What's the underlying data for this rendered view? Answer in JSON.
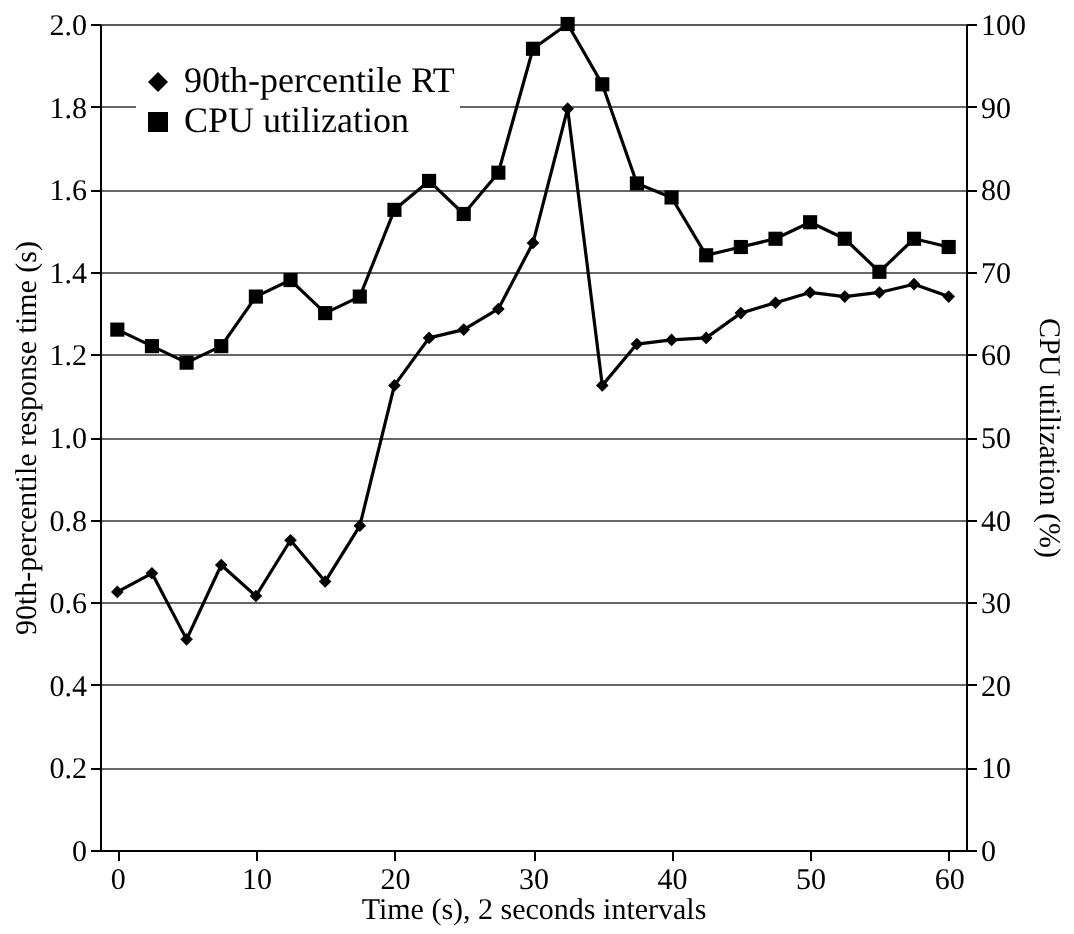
{
  "chart_data": {
    "type": "line",
    "xlabel": "Time (s), 2 seconds intervals",
    "ylabel": "90th-percentile response time (s)",
    "y2label": "CPU utilization (%)",
    "x": [
      0,
      2.5,
      5,
      7.5,
      10,
      12.5,
      15,
      17.5,
      20,
      22.5,
      25,
      27.5,
      30,
      32.5,
      35,
      37.5,
      40,
      42.5,
      45,
      47.5,
      50,
      52.5,
      55,
      57.5,
      60
    ],
    "series": [
      {
        "name": "90th-percentile RT",
        "color": "#000000",
        "marker": "diamond",
        "values": [
          0.625,
          0.67,
          0.51,
          0.69,
          0.615,
          0.75,
          0.65,
          0.785,
          1.125,
          1.24,
          1.26,
          1.31,
          1.47,
          1.795,
          1.125,
          1.225,
          1.235,
          1.24,
          1.3,
          1.325,
          1.35,
          1.34,
          1.35,
          1.37,
          1.34
        ]
      },
      {
        "name": "CPU utilization",
        "color": "#000000",
        "marker": "square",
        "axis": "y2",
        "values": [
          63,
          61,
          59,
          61,
          67,
          69,
          65,
          67,
          77.5,
          81,
          77,
          82,
          97,
          100,
          92.7,
          80.7,
          79,
          72,
          73,
          74,
          76,
          74,
          70,
          74,
          73
        ]
      }
    ],
    "xlim": [
      -1.25,
      61.25
    ],
    "xticks": [
      0,
      10,
      20,
      30,
      40,
      50,
      60
    ],
    "ylim": [
      0,
      2.0
    ],
    "yticks": [
      0,
      0.2,
      0.4,
      0.6,
      0.8,
      {
        "value": 1.0,
        "label": "1.0"
      },
      1.2,
      1.4,
      1.6,
      1.8,
      {
        "value": 2.0,
        "label": "2.0"
      }
    ],
    "y2lim": [
      0,
      100
    ],
    "y2ticks": [
      0,
      10,
      20,
      30,
      40,
      50,
      60,
      70,
      80,
      90,
      100
    ],
    "grid": "y",
    "legend": "top left",
    "line_style": "solid"
  }
}
